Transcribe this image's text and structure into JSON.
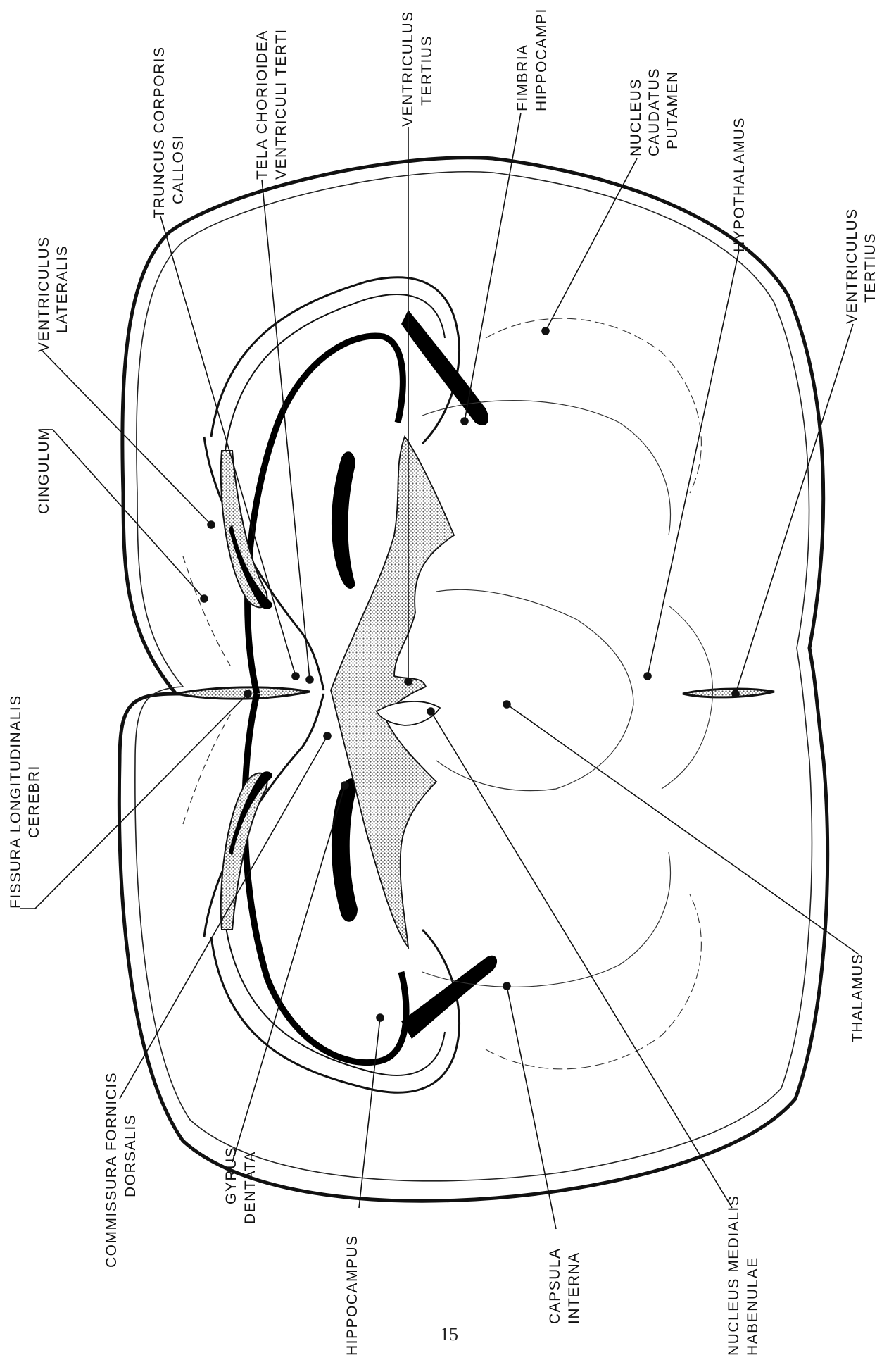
{
  "labels": {
    "fissura_line1": "FISSURA LONGITUDINALIS",
    "fissura_line2": "CEREBRI",
    "cingulum": "CINGULUM",
    "ventriculus_lateralis_line1": "VENTRICULUS",
    "ventriculus_lateralis_line2": "LATERALIS",
    "truncus_line1": "TRUNCUS CORPORIS",
    "truncus_line2": "CALLOSI",
    "tela_line1": "TELA CHORIOIDEA",
    "tela_line2": "VENTRICULI TERTI",
    "ventriculus_tertius_top_line1": "VENTRICULUS",
    "ventriculus_tertius_top_line2": "TERTIUS",
    "fimbria_line1": "FIMBRIA",
    "fimbria_line2": "HIPPOCAMPI",
    "nucleus_caudatus_line1": "NUCLEUS",
    "nucleus_caudatus_line2": "CAUDATUS",
    "nucleus_caudatus_line3": "PUTAMEN",
    "hypothalamus": "HYPOTHALAMUS",
    "ventriculus_tertius_right_line1": "VENTRICULUS",
    "ventriculus_tertius_right_line2": "TERTIUS",
    "commissura_line1": "COMMISSURA FORNICIS",
    "commissura_line2": "DORSALIS",
    "gyrus_line1": "GYRUS",
    "gyrus_line2": "DENTATA",
    "hippocampus": "HIPPOCAMPUS",
    "capsula_line1": "CAPSULA",
    "capsula_line2": "INTERNA",
    "nucleus_medialis_line1": "NUCLEUS MEDIALIS",
    "nucleus_medialis_line2": "HABENULAE",
    "thalamus": "THALAMUS"
  },
  "page_number": "15"
}
